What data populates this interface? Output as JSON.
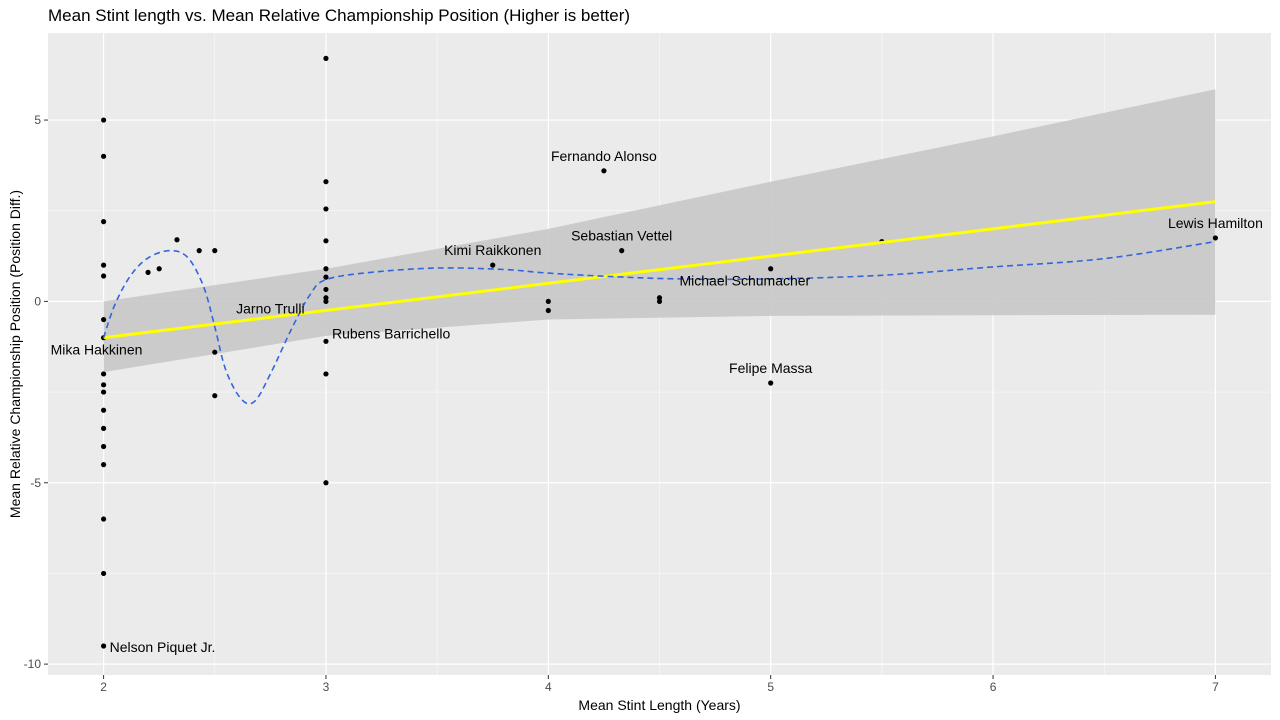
{
  "chart_data": {
    "type": "scatter",
    "title": "Mean Stint length vs. Mean Relative Championship Position (Higher is better)",
    "xlabel": "Mean Stint Length (Years)",
    "ylabel": "Mean Relative Championship Position (Position Diff.)",
    "xlim": [
      1.75,
      7.25
    ],
    "ylim": [
      -10.3,
      7.4
    ],
    "xticks": [
      2,
      3,
      4,
      5,
      6,
      7
    ],
    "xminor": [
      2.5,
      3.5,
      4.5,
      5.5,
      6.5
    ],
    "yticks": [
      -10,
      -5,
      0,
      5
    ],
    "yminor": [
      -7.5,
      -2.5,
      2.5
    ],
    "grid": true,
    "legend": "none",
    "point_color": "#000000",
    "trend_color": "#ffff00",
    "smooth_color": "#3366dd",
    "band_color": "#c8c8c8",
    "panel_color": "#ebebeb",
    "points": [
      {
        "x": 2,
        "y": 5
      },
      {
        "x": 2,
        "y": 4
      },
      {
        "x": 2,
        "y": 2.2
      },
      {
        "x": 2,
        "y": 1
      },
      {
        "x": 2,
        "y": 0.7
      },
      {
        "x": 2,
        "y": -0.5
      },
      {
        "x": 2,
        "y": -1
      },
      {
        "x": 2,
        "y": -2
      },
      {
        "x": 2,
        "y": -2.3
      },
      {
        "x": 2,
        "y": -2.5
      },
      {
        "x": 2,
        "y": -3
      },
      {
        "x": 2,
        "y": -3.5
      },
      {
        "x": 2,
        "y": -4
      },
      {
        "x": 2,
        "y": -4.5
      },
      {
        "x": 2,
        "y": -6
      },
      {
        "x": 2,
        "y": -7.5
      },
      {
        "x": 2,
        "y": -9.5
      },
      {
        "x": 2.2,
        "y": 0.8
      },
      {
        "x": 2.25,
        "y": 0.9
      },
      {
        "x": 2.33,
        "y": 1.7
      },
      {
        "x": 2.43,
        "y": 1.4
      },
      {
        "x": 2.5,
        "y": 1.4
      },
      {
        "x": 2.5,
        "y": -1.4
      },
      {
        "x": 2.5,
        "y": -2.6
      },
      {
        "x": 3,
        "y": 6.7
      },
      {
        "x": 3,
        "y": 3.3
      },
      {
        "x": 3,
        "y": 2.55
      },
      {
        "x": 3,
        "y": 1.67
      },
      {
        "x": 3,
        "y": 0.9
      },
      {
        "x": 3,
        "y": 0.67
      },
      {
        "x": 3,
        "y": 0.33
      },
      {
        "x": 3,
        "y": 0.1
      },
      {
        "x": 3,
        "y": 0
      },
      {
        "x": 3,
        "y": -1.1
      },
      {
        "x": 3,
        "y": -2
      },
      {
        "x": 3,
        "y": -5
      },
      {
        "x": 3.75,
        "y": 1
      },
      {
        "x": 4,
        "y": 0
      },
      {
        "x": 4,
        "y": -0.25
      },
      {
        "x": 4.25,
        "y": 3.6
      },
      {
        "x": 4.33,
        "y": 1.4
      },
      {
        "x": 4.5,
        "y": 0.1
      },
      {
        "x": 4.5,
        "y": 0
      },
      {
        "x": 5,
        "y": 0.9
      },
      {
        "x": 5,
        "y": -2.25
      },
      {
        "x": 5.5,
        "y": 1.65
      },
      {
        "x": 7,
        "y": 1.75
      }
    ],
    "labels": [
      {
        "text": "Fernando Alonso",
        "x": 4.25,
        "y": 3.6,
        "anchor": "above"
      },
      {
        "text": "Sebastian Vettel",
        "x": 4.33,
        "y": 1.4,
        "anchor": "above"
      },
      {
        "text": "Kimi Raikkonen",
        "x": 3.75,
        "y": 1,
        "anchor": "above"
      },
      {
        "text": "Lewis Hamilton",
        "x": 7,
        "y": 1.75,
        "anchor": "above"
      },
      {
        "text": "Michael Schumacher",
        "x": 4.5,
        "y": 0.05,
        "anchor": "below-right"
      },
      {
        "text": "Jarno Trulli",
        "x": 2.75,
        "y": -0.2,
        "anchor": "center"
      },
      {
        "text": "Rubens Barrichello",
        "x": 3,
        "y": -1.1,
        "anchor": "above-right"
      },
      {
        "text": "Mika Hakkinen",
        "x": 2,
        "y": -1,
        "anchor": "below-left"
      },
      {
        "text": "Felipe Massa",
        "x": 5,
        "y": -2.25,
        "anchor": "above"
      },
      {
        "text": "Nelson Piquet Jr.",
        "x": 2,
        "y": -9.5,
        "anchor": "right"
      }
    ],
    "trend": {
      "x": [
        2,
        7
      ],
      "y": [
        -1,
        2.75
      ]
    },
    "band": {
      "upper": [
        [
          2,
          0
        ],
        [
          3,
          0.9
        ],
        [
          4,
          2.0
        ],
        [
          5,
          3.3
        ],
        [
          6,
          4.55
        ],
        [
          7,
          5.85
        ]
      ],
      "lower": [
        [
          2,
          -1.95
        ],
        [
          3,
          -0.95
        ],
        [
          4,
          -0.5
        ],
        [
          5,
          -0.4
        ],
        [
          6,
          -0.38
        ],
        [
          7,
          -0.37
        ]
      ]
    },
    "smooth": [
      [
        2,
        -1
      ],
      [
        2.05,
        -0.1
      ],
      [
        2.12,
        0.7
      ],
      [
        2.2,
        1.2
      ],
      [
        2.3,
        1.4
      ],
      [
        2.38,
        1.2
      ],
      [
        2.45,
        0.4
      ],
      [
        2.5,
        -0.7
      ],
      [
        2.55,
        -1.9
      ],
      [
        2.62,
        -2.7
      ],
      [
        2.68,
        -2.75
      ],
      [
        2.75,
        -2
      ],
      [
        2.85,
        -0.7
      ],
      [
        2.93,
        0.2
      ],
      [
        3,
        0.6
      ],
      [
        3.2,
        0.8
      ],
      [
        3.5,
        0.92
      ],
      [
        3.8,
        0.88
      ],
      [
        4,
        0.78
      ],
      [
        4.3,
        0.68
      ],
      [
        4.6,
        0.62
      ],
      [
        5,
        0.62
      ],
      [
        5.5,
        0.72
      ],
      [
        6,
        0.95
      ],
      [
        6.5,
        1.18
      ],
      [
        7,
        1.65
      ]
    ]
  }
}
